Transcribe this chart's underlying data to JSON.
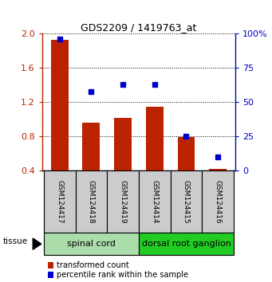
{
  "title": "GDS2209 / 1419763_at",
  "samples": [
    "GSM124417",
    "GSM124418",
    "GSM124419",
    "GSM124414",
    "GSM124415",
    "GSM124416"
  ],
  "bar_values": [
    1.93,
    0.96,
    1.02,
    1.15,
    0.79,
    0.42
  ],
  "percentile_values": [
    96,
    58,
    63,
    63,
    25,
    10
  ],
  "ylim_left": [
    0.4,
    2.0
  ],
  "ylim_right": [
    0,
    100
  ],
  "yticks_left": [
    0.4,
    0.8,
    1.2,
    1.6,
    2.0
  ],
  "yticks_right": [
    0,
    25,
    50,
    75,
    100
  ],
  "ytick_labels_right": [
    "0",
    "25",
    "50",
    "75",
    "100%"
  ],
  "bar_color": "#bb2200",
  "dot_color": "#0000cc",
  "tissue_groups": [
    {
      "label": "spinal cord",
      "indices": [
        0,
        1,
        2
      ],
      "color": "#aaddaa"
    },
    {
      "label": "dorsal root ganglion",
      "indices": [
        3,
        4,
        5
      ],
      "color": "#22cc22"
    }
  ],
  "legend_items": [
    {
      "label": "transformed count",
      "color": "#bb2200"
    },
    {
      "label": "percentile rank within the sample",
      "color": "#0000cc"
    }
  ],
  "bar_width": 0.55,
  "background_color": "#ffffff",
  "sample_box_color": "#cccccc",
  "title_fontsize": 9
}
